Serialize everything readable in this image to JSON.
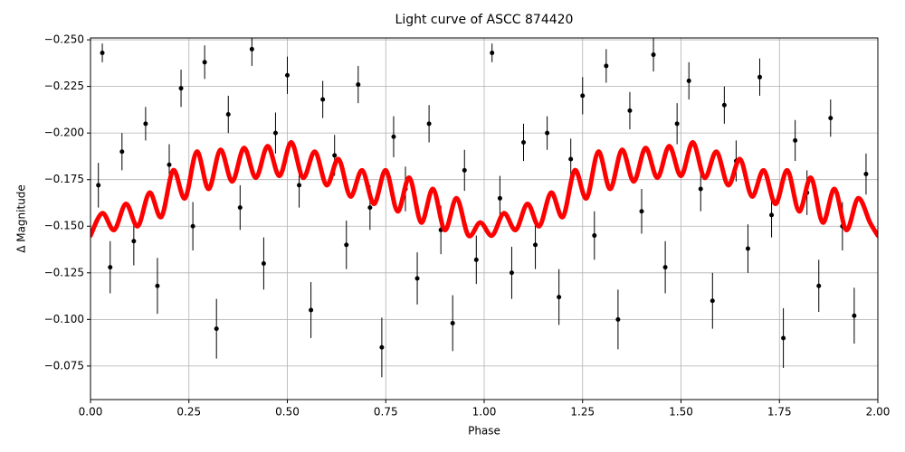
{
  "chart_data": {
    "type": "errorbar-scatter",
    "title": "Light curve of ASCC 874420",
    "x_label": "Phase",
    "y_label": "Δ Magnitude",
    "xlim": [
      0,
      2
    ],
    "ylim": [
      -0.251,
      -0.057
    ],
    "y_inverted": true,
    "grid": true,
    "xticks": [
      {
        "value": 0,
        "label": "0.00"
      },
      {
        "value": 0.25,
        "label": "0.25"
      },
      {
        "value": 0.5,
        "label": "0.50"
      },
      {
        "value": 0.75,
        "label": "0.75"
      },
      {
        "value": 1,
        "label": "1.00"
      },
      {
        "value": 1.25,
        "label": "1.25"
      },
      {
        "value": 1.5,
        "label": "1.50"
      },
      {
        "value": 1.75,
        "label": "1.75"
      },
      {
        "value": 2,
        "label": "2.00"
      }
    ],
    "yticks": [
      {
        "value": -0.25,
        "label": "−0.250"
      },
      {
        "value": -0.225,
        "label": "−0.225"
      },
      {
        "value": -0.2,
        "label": "−0.200"
      },
      {
        "value": -0.175,
        "label": "−0.175"
      },
      {
        "value": -0.15,
        "label": "−0.150"
      },
      {
        "value": -0.125,
        "label": "−0.125"
      },
      {
        "value": -0.1,
        "label": "−0.100"
      },
      {
        "value": -0.075,
        "label": "−0.075"
      }
    ],
    "points": {
      "color": "#000000",
      "x": [
        0.02,
        0.03,
        0.05,
        0.08,
        0.11,
        0.14,
        0.17,
        0.2,
        0.23,
        0.26,
        0.29,
        0.32,
        0.35,
        0.38,
        0.41,
        0.44,
        0.47,
        0.5,
        0.53,
        0.56,
        0.59,
        0.62,
        0.65,
        0.68,
        0.71,
        0.74,
        0.77,
        0.8,
        0.83,
        0.86,
        0.89,
        0.92,
        0.95,
        0.98,
        1.02,
        1.04,
        1.07,
        1.1,
        1.13,
        1.16,
        1.19,
        1.22,
        1.25,
        1.28,
        1.31,
        1.34,
        1.37,
        1.4,
        1.43,
        1.46,
        1.49,
        1.52,
        1.55,
        1.58,
        1.61,
        1.64,
        1.67,
        1.7,
        1.73,
        1.76,
        1.79,
        1.82,
        1.85,
        1.88,
        1.91,
        1.94,
        1.97
      ],
      "y": [
        -0.172,
        -0.243,
        -0.128,
        -0.19,
        -0.142,
        -0.205,
        -0.118,
        -0.183,
        -0.224,
        -0.15,
        -0.238,
        -0.095,
        -0.21,
        -0.16,
        -0.245,
        -0.13,
        -0.2,
        -0.231,
        -0.172,
        -0.105,
        -0.218,
        -0.188,
        -0.14,
        -0.226,
        -0.16,
        -0.085,
        -0.198,
        -0.17,
        -0.122,
        -0.205,
        -0.148,
        -0.098,
        -0.18,
        -0.132,
        -0.243,
        -0.165,
        -0.125,
        -0.195,
        -0.14,
        -0.2,
        -0.112,
        -0.186,
        -0.22,
        -0.145,
        -0.236,
        -0.1,
        -0.212,
        -0.158,
        -0.242,
        -0.128,
        -0.205,
        -0.228,
        -0.17,
        -0.11,
        -0.215,
        -0.185,
        -0.138,
        -0.23,
        -0.156,
        -0.09,
        -0.196,
        -0.168,
        -0.118,
        -0.208,
        -0.15,
        -0.102,
        -0.178
      ],
      "err": [
        0.012,
        0.005,
        0.014,
        0.01,
        0.013,
        0.009,
        0.015,
        0.011,
        0.01,
        0.013,
        0.009,
        0.016,
        0.01,
        0.012,
        0.009,
        0.014,
        0.011,
        0.01,
        0.012,
        0.015,
        0.01,
        0.011,
        0.013,
        0.01,
        0.012,
        0.016,
        0.011,
        0.012,
        0.014,
        0.01,
        0.013,
        0.015,
        0.011,
        0.013,
        0.005,
        0.012,
        0.014,
        0.01,
        0.013,
        0.009,
        0.015,
        0.011,
        0.01,
        0.013,
        0.009,
        0.016,
        0.01,
        0.012,
        0.009,
        0.014,
        0.011,
        0.01,
        0.012,
        0.015,
        0.01,
        0.011,
        0.013,
        0.01,
        0.012,
        0.016,
        0.011,
        0.012,
        0.014,
        0.01,
        0.013,
        0.015,
        0.011
      ]
    },
    "model": {
      "color": "#ff0000",
      "x": [
        0,
        0.03,
        0.06,
        0.09,
        0.12,
        0.15,
        0.18,
        0.21,
        0.24,
        0.27,
        0.3,
        0.33,
        0.36,
        0.39,
        0.42,
        0.45,
        0.48,
        0.51,
        0.54,
        0.57,
        0.6,
        0.63,
        0.66,
        0.69,
        0.72,
        0.75,
        0.78,
        0.81,
        0.84,
        0.87,
        0.9,
        0.93,
        0.96,
        0.99,
        1.02,
        1.05,
        1.08,
        1.11,
        1.14,
        1.17,
        1.2,
        1.23,
        1.26,
        1.29,
        1.32,
        1.35,
        1.38,
        1.41,
        1.44,
        1.47,
        1.5,
        1.53,
        1.56,
        1.59,
        1.62,
        1.65,
        1.68,
        1.71,
        1.74,
        1.77,
        1.8,
        1.83,
        1.86,
        1.89,
        1.92,
        1.95,
        1.98,
        2
      ],
      "y": [
        -0.145,
        -0.157,
        -0.148,
        -0.162,
        -0.15,
        -0.168,
        -0.155,
        -0.18,
        -0.165,
        -0.19,
        -0.17,
        -0.191,
        -0.174,
        -0.192,
        -0.176,
        -0.193,
        -0.177,
        -0.195,
        -0.176,
        -0.19,
        -0.172,
        -0.186,
        -0.166,
        -0.18,
        -0.162,
        -0.18,
        -0.158,
        -0.176,
        -0.152,
        -0.17,
        -0.148,
        -0.165,
        -0.145,
        -0.152,
        -0.145,
        -0.157,
        -0.148,
        -0.162,
        -0.15,
        -0.168,
        -0.155,
        -0.18,
        -0.165,
        -0.19,
        -0.17,
        -0.191,
        -0.174,
        -0.192,
        -0.176,
        -0.193,
        -0.177,
        -0.195,
        -0.176,
        -0.19,
        -0.172,
        -0.186,
        -0.166,
        -0.18,
        -0.162,
        -0.18,
        -0.158,
        -0.176,
        -0.152,
        -0.17,
        -0.148,
        -0.165,
        -0.152,
        -0.145
      ]
    }
  }
}
